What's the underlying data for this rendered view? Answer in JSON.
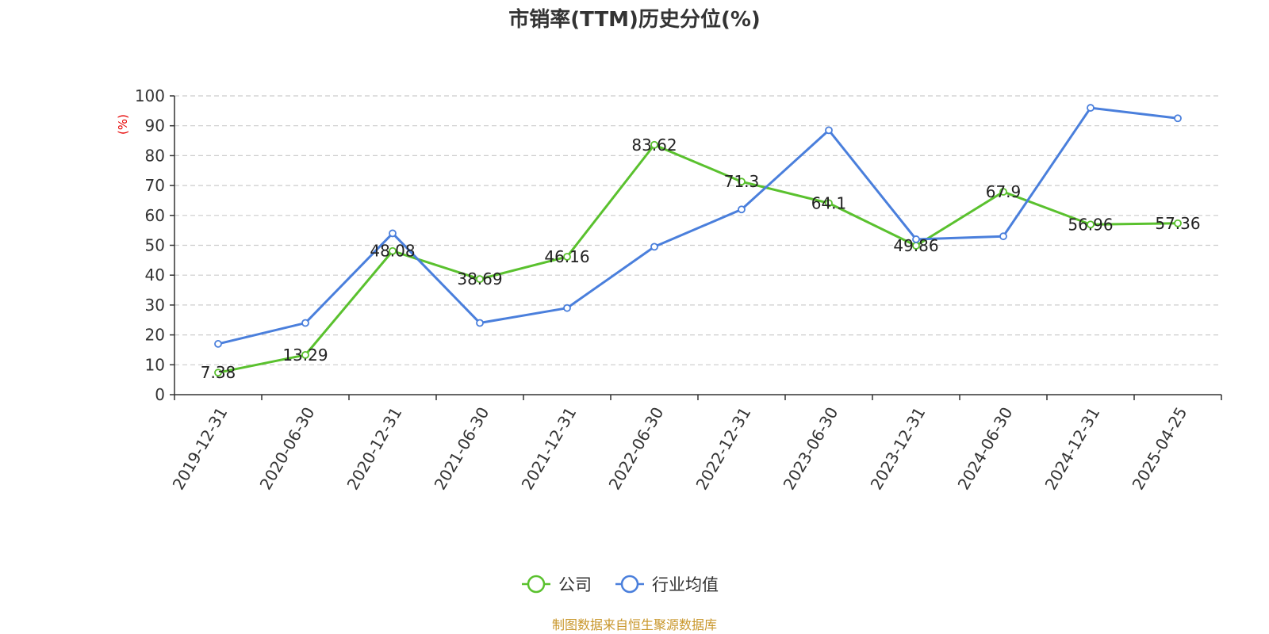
{
  "chart_data": {
    "type": "line",
    "title": "市销率(TTM)历史分位(%)",
    "ylabel": "(%)",
    "xlabel": "",
    "ylim": [
      0,
      100
    ],
    "yticks": [
      0,
      10,
      20,
      30,
      40,
      50,
      60,
      70,
      80,
      90,
      100
    ],
    "grid": true,
    "legend_position": "bottom",
    "categories": [
      "2019-12-31",
      "2020-06-30",
      "2020-12-31",
      "2021-06-30",
      "2021-12-31",
      "2022-06-30",
      "2022-12-31",
      "2023-06-30",
      "2023-12-31",
      "2024-06-30",
      "2024-12-31",
      "2025-04-25"
    ],
    "series": [
      {
        "name": "公司",
        "color": "#5ac12e",
        "values": [
          7.38,
          13.29,
          48.08,
          38.69,
          46.16,
          83.62,
          71.3,
          64.1,
          49.86,
          67.9,
          56.96,
          57.36
        ],
        "labels": [
          "7.38",
          "13.29",
          "48.08",
          "38.69",
          "46.16",
          "83.62",
          "71.3",
          "64.1",
          "49.86",
          "67.9",
          "56.96",
          "57.36"
        ]
      },
      {
        "name": "行业均值",
        "color": "#4a7fdc",
        "values": [
          17,
          24,
          54,
          24,
          29,
          49.5,
          62,
          88.5,
          52,
          53,
          96,
          92.5
        ]
      }
    ],
    "source": "制图数据来自恒生聚源数据库",
    "ylabel_color": "#e60000",
    "source_color": "#c8962a"
  }
}
